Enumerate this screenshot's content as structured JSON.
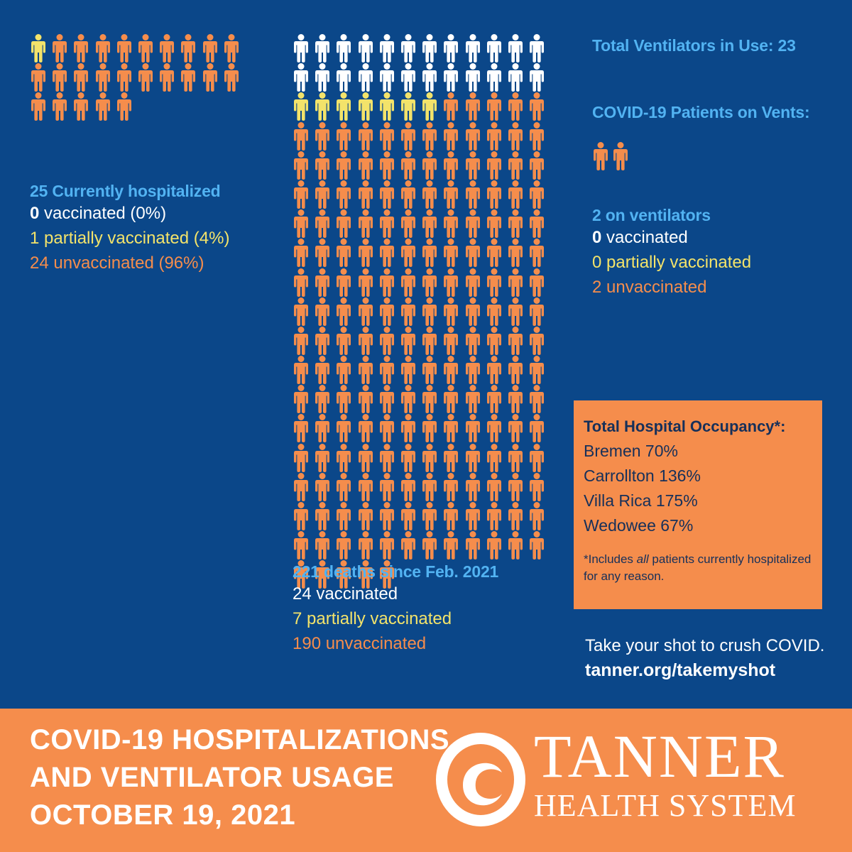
{
  "colors": {
    "background": "#0b4789",
    "heading_blue": "#52b3f2",
    "vaccinated_white": "#ffffff",
    "partial_yellow": "#f3e36a",
    "unvaccinated_orange": "#f58d4c",
    "box_text": "#16305a"
  },
  "icon": "person-icon",
  "hospitalized": {
    "total": 25,
    "vaccinated": 0,
    "partially": 1,
    "unvaccinated": 24,
    "heading": "25 Currently hospitalized",
    "vacc_num": "0",
    "vacc_text": " vaccinated (0%)",
    "partial_text": "1 partially vaccinated (4%)",
    "unvacc_text": "24 unvaccinated (96%)"
  },
  "deaths": {
    "total": 221,
    "vaccinated": 24,
    "partially": 7,
    "unvaccinated": 190,
    "heading": "221 deaths since Feb. 2021",
    "vacc_text": "24 vaccinated",
    "partial_text": "7 partially vaccinated",
    "unvacc_text": "190 unvaccinated"
  },
  "ventilators": {
    "total_label": "Total Ventilators in Use: 23",
    "patients_label": "COVID-19 Patients on Vents:",
    "total": 2,
    "vaccinated": 0,
    "partially": 0,
    "unvaccinated": 2,
    "heading": "2 on ventilators",
    "vacc_num": "0",
    "vacc_text": " vaccinated",
    "partial_text": "0 partially vaccinated",
    "unvacc_text": "2 unvaccinated"
  },
  "occupancy": {
    "title": "Total Hospital Occupancy*:",
    "rows": [
      "Bremen 70%",
      "Carrollton 136%",
      "Villa Rica 175%",
      "Wedowee 67%"
    ],
    "note_pre": "*Includes ",
    "note_em": "all",
    "note_post": " patients currently hospitalized for any reason."
  },
  "cta": {
    "line1": "Take your shot to crush COVID.",
    "link": "tanner.org/takemyshot"
  },
  "banner": {
    "title_lines": [
      "COVID-19 HOSPITALIZATIONS",
      "AND VENTILATOR USAGE",
      "OCTOBER 19, 2021"
    ],
    "logo_name": "TANNER",
    "logo_sub": "HEALTH SYSTEM"
  }
}
